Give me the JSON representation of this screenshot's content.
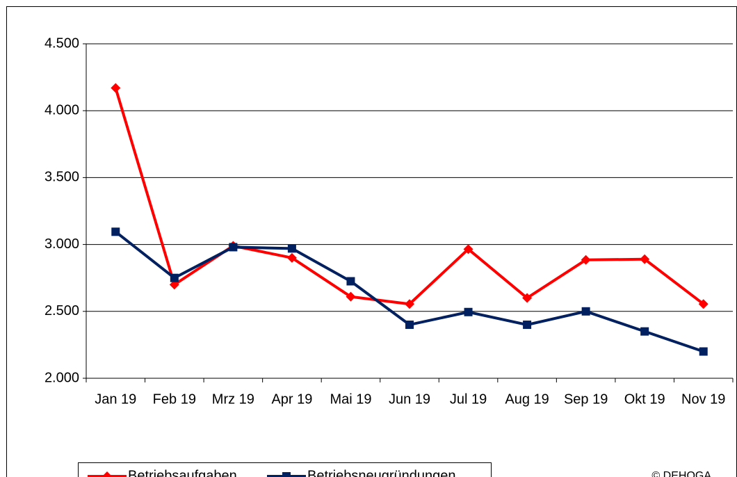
{
  "chart_data": {
    "type": "line",
    "categories": [
      "Jan 19",
      "Feb 19",
      "Mrz 19",
      "Apr 19",
      "Mai 19",
      "Jun 19",
      "Jul 19",
      "Aug 19",
      "Sep 19",
      "Okt 19",
      "Nov 19"
    ],
    "series": [
      {
        "name": "Betriebsaufgaben",
        "color": "#ff0000",
        "marker": "diamond",
        "values": [
          4170,
          2700,
          2990,
          2900,
          2610,
          2555,
          2965,
          2600,
          2885,
          2890,
          2555
        ]
      },
      {
        "name": "Betriebsneugründungen",
        "color": "#002060",
        "marker": "square",
        "values": [
          3095,
          2750,
          2980,
          2970,
          2725,
          2400,
          2495,
          2400,
          2500,
          2350,
          2200
        ]
      }
    ],
    "ylim": [
      2000,
      4500
    ],
    "yticks": [
      {
        "value": 2000,
        "label": "2.000"
      },
      {
        "value": 2500,
        "label": "2.500"
      },
      {
        "value": 3000,
        "label": "3.000"
      },
      {
        "value": 3500,
        "label": "3.500"
      },
      {
        "value": 4000,
        "label": "4.000"
      },
      {
        "value": 4500,
        "label": "4.500"
      }
    ],
    "grid": true,
    "legend": "bottom",
    "annotation": "© DEHOGA"
  }
}
